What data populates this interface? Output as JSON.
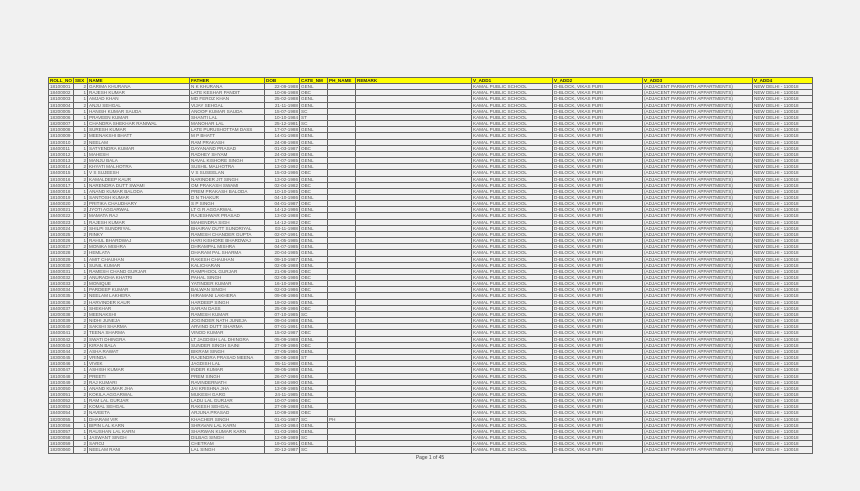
{
  "columns": [
    "ROLL_NO",
    "SEX",
    "NAME",
    "FATHER",
    "DOB",
    "CATE_NM",
    "PH_NAME",
    "REMARK",
    "V_ADD1",
    "V_ADD2",
    "V_ADD3",
    "V_ADD4"
  ],
  "address": {
    "add1": "KAMAL PUBLIC SCHOOL",
    "add2": "D-BLOCK, VIKAS PURI",
    "add3": "(ADJACENT PARMARTH APPARTMENTS)",
    "add4": "NEW DELHI - 110018"
  },
  "rows": [
    [
      "18100001",
      "2",
      "GARIMA KHURANA",
      "N K KHURANA",
      "22-09-1988",
      "GENL",
      ""
    ],
    [
      "18400002",
      "1",
      "RAJESH KUMAR",
      "LATE KESHAR PANDIT",
      "10-06-1988",
      "OBC",
      ""
    ],
    [
      "18100003",
      "1",
      "AMJAD KHAN",
      "MD FEROZ KHAN",
      "25-02-1988",
      "GENL",
      ""
    ],
    [
      "18100004",
      "2",
      "ANJU SEHGAL",
      "VIJAY SEHGAL",
      "21-11-1988",
      "GENL",
      ""
    ],
    [
      "18200005",
      "1",
      "HANISH KUMAR SAUDA",
      "ANOOP KUMAR SAUDA",
      "15-07-1988",
      "SC",
      ""
    ],
    [
      "18300006",
      "1",
      "PRAVEEN KUMAR",
      "SHANTI LAL",
      "10-10-1984",
      "ST",
      ""
    ],
    [
      "18200007",
      "1",
      "CHANDRA SHEKHAR RANIWAL",
      "MANOHAR LAL",
      "25-12-1981",
      "SC",
      ""
    ],
    [
      "18100008",
      "1",
      "SURESH KUMAR",
      "LATE PURUSHOTTAM DASS",
      "17-07-1988",
      "GENL",
      ""
    ],
    [
      "18100009",
      "2",
      "MEENAKSHI BHATT",
      "M P BHATT",
      "14-01-1988",
      "GENL",
      ""
    ],
    [
      "18100010",
      "2",
      "NEELAM",
      "RAM PRAKASH",
      "24-08-1988",
      "GENL",
      ""
    ],
    [
      "18400011",
      "1",
      "SATYENDRA KUMAR",
      "DAYANAND PRASAD",
      "01-03-1987",
      "OBC",
      ""
    ],
    [
      "18100012",
      "1",
      "MAHESH",
      "RADHEY SHYAM",
      "24-03-1988",
      "GENL",
      ""
    ],
    [
      "18100013",
      "2",
      "MANJU BALA",
      "NAVAL KISHORE SINGH",
      "17-07-1985",
      "GENL",
      ""
    ],
    [
      "18100014",
      "2",
      "KHYATI MALHOTRA",
      "SUSHIL MALHOTRA",
      "13-03-1992",
      "GENL",
      ""
    ],
    [
      "18400015",
      "1",
      "V S SUJEESH",
      "V S SUSEELAN",
      "15-03-1986",
      "OBC",
      ""
    ],
    [
      "18100016",
      "2",
      "KAMALDEEP KAUR",
      "NARINDER JIT SINGH",
      "13-02-1986",
      "GENL",
      ""
    ],
    [
      "18400017",
      "1",
      "NARENDRA DUTT SWAMI",
      "OM PRAKASH SWAMI",
      "02-04-1982",
      "OBC",
      ""
    ],
    [
      "18400018",
      "1",
      "ANAND KUMAR BALODA",
      "PREM PRAKASH BALODA",
      "10-10-1985",
      "OBC",
      ""
    ],
    [
      "18100019",
      "1",
      "SANTOSH KUMAR",
      "D N THAKUR",
      "04-10-1986",
      "GENL",
      ""
    ],
    [
      "18400020",
      "2",
      "PRITIKA CHAUDHARY",
      "S P SINGH",
      "04-01-1987",
      "OBC",
      ""
    ],
    [
      "18100021",
      "2",
      "JYOTI AGGARWAL",
      "LT G R AGGARWAL",
      "14-12-1986",
      "GENL",
      ""
    ],
    [
      "18400022",
      "2",
      "MAMATA RAJ",
      "RAJESHWAR PRASAD",
      "13-02-1988",
      "OBC",
      ""
    ],
    [
      "18400023",
      "1",
      "RAJESH KUMAR",
      "MAHENDRA SIGH",
      "14-12-1982",
      "OBC",
      ""
    ],
    [
      "18100024",
      "2",
      "SHILPI SUNDRIYAL",
      "BHAIRAV DUTT SUNDRIYAL",
      "03-11-1988",
      "GENL",
      ""
    ],
    [
      "18100025",
      "2",
      "RINKY",
      "RAMESH CHANDER GUPTA",
      "02-07-1991",
      "GENL",
      ""
    ],
    [
      "18100026",
      "1",
      "RAHUL BHARDWAJ",
      "HARI KISHORE BHARDWAJ",
      "11-05-1985",
      "GENL",
      ""
    ],
    [
      "18100027",
      "2",
      "MONIKA MISHRA",
      "DHRAMPAL MISHRA",
      "04-07-1985",
      "GENL",
      ""
    ],
    [
      "18100028",
      "2",
      "HEMLATA",
      "DHARAM PAL SHARMA",
      "20-04-1985",
      "GENL",
      ""
    ],
    [
      "18100029",
      "1",
      "AMIT CHAUHAN",
      "RAKESH CHAUHAN",
      "09-10-1987",
      "GENL",
      ""
    ],
    [
      "18100030",
      "1",
      "SUNIL KUMAR",
      "KALICHARAN",
      "02-05-1988",
      "GENL",
      ""
    ],
    [
      "18400031",
      "1",
      "RAMESH CHAND GURJAR",
      "RAMPHOOL GURJAR",
      "21-06-1986",
      "OBC",
      ""
    ],
    [
      "18400032",
      "2",
      "ANURADHA KHATRI",
      "PAHAL SINGH",
      "02-05-1986",
      "OBC",
      ""
    ],
    [
      "18100033",
      "2",
      "MONIQUE",
      "YATINDER KUMAR",
      "16-10-1989",
      "GENL",
      ""
    ],
    [
      "18400034",
      "1",
      "PARDEEP KUMAR",
      "BALWAN SINGH",
      "02-03-1986",
      "OBC",
      ""
    ],
    [
      "18100035",
      "2",
      "NEELAM LAKHERA",
      "HIRAMANI LAKHERA",
      "09-08-1986",
      "GENL",
      ""
    ],
    [
      "18100036",
      "2",
      "HARVINDER KAUR",
      "HARDEEP SINGH",
      "19-02-1985",
      "GENL",
      ""
    ],
    [
      "18400037",
      "1",
      "SHEKHAR",
      "SARAN DASS",
      "25-09-1986",
      "OBC",
      ""
    ],
    [
      "18200038",
      "2",
      "MEENAKSHI",
      "RAMESH KUMAR",
      "07-10-1985",
      "SC",
      ""
    ],
    [
      "18100039",
      "2",
      "NIDHI JUNEJA",
      "JOGINDER NATH JUNEJA",
      "09-04-1988",
      "GENL",
      ""
    ],
    [
      "18100040",
      "2",
      "SAKSHI SHARMA",
      "ARVIND DUTT SHARMA",
      "07-01-1991",
      "GENL",
      ""
    ],
    [
      "18400041",
      "2",
      "TEENA SHARMA",
      "VINOD KUMAR",
      "15-02-1987",
      "OBC",
      ""
    ],
    [
      "18100042",
      "2",
      "SWATI DHINGRA",
      "LT JAGDISH LAL DHINGRA",
      "05-09-1988",
      "GENL",
      ""
    ],
    [
      "18400043",
      "2",
      "KIRAN BALA",
      "SUNDER SINGH SAINI",
      "27-09-1986",
      "OBC",
      ""
    ],
    [
      "18100044",
      "2",
      "ASHA RAWAT",
      "BIKRAM SINGH",
      "27-05-1986",
      "GENL",
      ""
    ],
    [
      "18300045",
      "2",
      "VRINDA",
      "RAJENDRA PRASAD MEENA",
      "08-08-1988",
      "ST",
      ""
    ],
    [
      "18100046",
      "1",
      "VIVEK",
      "JAGDISH LAL",
      "05-11-1988",
      "GENL",
      ""
    ],
    [
      "18100047",
      "1",
      "ASHISH KUMAR",
      "INDER KUMAR",
      "09-05-1988",
      "GENL",
      ""
    ],
    [
      "18100048",
      "2",
      "PREETI",
      "PREM SINGH",
      "26-07-1986",
      "GENL",
      ""
    ],
    [
      "18100049",
      "2",
      "RAJ KUMARI",
      "RAVINDERNATH",
      "18-04-1990",
      "GENL",
      ""
    ],
    [
      "18100050",
      "1",
      "ANAND KUMAR JHA",
      "JAI KRISHNA JHA",
      "13-09-1985",
      "GENL",
      ""
    ],
    [
      "18100051",
      "2",
      "KOKILA AGGARWAL",
      "MUKESH GARG",
      "24-11-1985",
      "GENL",
      ""
    ],
    [
      "18400052",
      "1",
      "RAM LAL GURJAR",
      "LADU LAL GURJAR",
      "10-07-1986",
      "OBC",
      ""
    ],
    [
      "18100053",
      "2",
      "KOMAL SEHGAL",
      "RAKESH SEHGAL",
      "27-09-1988",
      "GENL",
      ""
    ],
    [
      "18400054",
      "2",
      "NAVEETA",
      "ARJUNA PRASAD",
      "10-09-1988",
      "OBC",
      ""
    ],
    [
      "18200055",
      "1",
      "DHARAM VIR",
      "KHACHER SINGH",
      "01-01-1987",
      "SC",
      "PH"
    ],
    [
      "18100056",
      "1",
      "BIPIN LAL KARN",
      "SHRAVAN LAL KARN",
      "15-03-1984",
      "GENL",
      ""
    ],
    [
      "18100057",
      "1",
      "RAUSHAN LAL KARN",
      "SHARWAN KUMAR KARN",
      "01-03-1986",
      "GENL",
      ""
    ],
    [
      "18200058",
      "1",
      "JASWANT SINGH",
      "DILBAG SINGH",
      "12-09-1989",
      "SC",
      ""
    ],
    [
      "18100059",
      "2",
      "SAROJ",
      "CHETRAM",
      "19-01-1991",
      "GENL",
      ""
    ],
    [
      "18200060",
      "2",
      "NEELAM RANI",
      "LAL SINGH",
      "20-12-1987",
      "SC",
      ""
    ]
  ],
  "footer": {
    "page_label": "Page 1 of 45"
  },
  "colors": {
    "header_bg": "#ffff00"
  }
}
